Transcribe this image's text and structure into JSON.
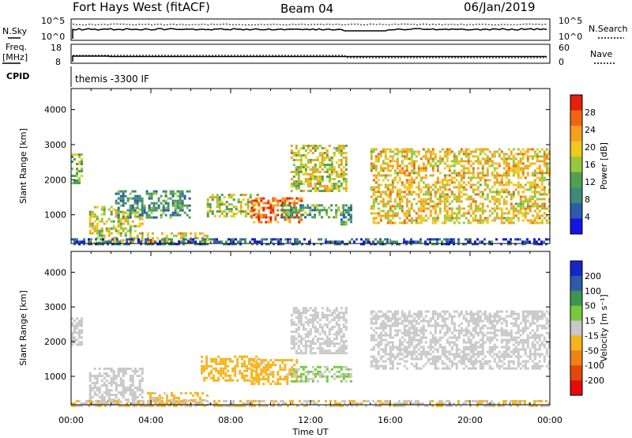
{
  "header": {
    "title": "Fort Hays West (fitACF)",
    "beam": "Beam 04",
    "date": "06/Jan/2019"
  },
  "summary": {
    "nsky_label": "N.Sky",
    "nsearch_label": "N.Search",
    "nsky_ticks": [
      "10^5",
      "10^0"
    ],
    "nsearch_ticks": [
      "10^5",
      "10^0"
    ],
    "freq_label_line1": "Freq.",
    "freq_label_line2": "[MHz]",
    "freq_ticks": [
      "18",
      "8"
    ],
    "nave_label": "Nave",
    "nave_ticks": [
      "60",
      "0"
    ],
    "cpid_label": "CPID",
    "cpid_text": "themis -3300 IF"
  },
  "chart_data": [
    {
      "type": "heatmap",
      "title": "",
      "xlabel": "Time UT",
      "ylabel": "Slant Range [km]",
      "xlim": [
        0,
        24
      ],
      "ylim": [
        180,
        4600
      ],
      "xticks": [
        "00:00",
        "04:00",
        "08:00",
        "12:00",
        "16:00",
        "20:00",
        "00:00"
      ],
      "yticks": [
        1000,
        2000,
        3000,
        4000
      ],
      "colorbar": {
        "label": "Power [dB]",
        "range": [
          0,
          32
        ],
        "ticks": [
          4,
          8,
          12,
          16,
          20,
          24,
          28
        ],
        "colors": [
          "#1414e6",
          "#2e5aaa",
          "#3c8c78",
          "#50a050",
          "#96c83c",
          "#f0c81e",
          "#f5a01e",
          "#f06414",
          "#e61e0a"
        ]
      },
      "scatter_regions": [
        {
          "t0": 0.0,
          "t1": 0.5,
          "r0": 1900,
          "r1": 2750,
          "value": 14
        },
        {
          "t0": 0.9,
          "t1": 3.6,
          "r0": 200,
          "r1": 1250,
          "value": 18
        },
        {
          "t0": 2.2,
          "t1": 6.0,
          "r0": 900,
          "r1": 1700,
          "value": 10
        },
        {
          "t0": 3.8,
          "t1": 6.8,
          "r0": 200,
          "r1": 500,
          "value": 20
        },
        {
          "t0": 6.8,
          "t1": 9.4,
          "r0": 950,
          "r1": 1600,
          "value": 17
        },
        {
          "t0": 9.0,
          "t1": 11.5,
          "r0": 800,
          "r1": 1500,
          "value": 26
        },
        {
          "t0": 10.5,
          "t1": 14.0,
          "r0": 900,
          "r1": 1300,
          "value": 12
        },
        {
          "t0": 11.0,
          "t1": 13.8,
          "r0": 1700,
          "r1": 3000,
          "value": 18
        },
        {
          "t0": 13.5,
          "t1": 14.0,
          "r0": 700,
          "r1": 1300,
          "value": 10
        },
        {
          "t0": 15.0,
          "t1": 24.0,
          "r0": 800,
          "r1": 2900,
          "value": 20
        },
        {
          "t0": 0.0,
          "t1": 24.0,
          "r0": 180,
          "r1": 330,
          "value": 6
        }
      ]
    },
    {
      "type": "heatmap",
      "title": "",
      "xlabel": "Time UT",
      "ylabel": "Slant Range [km]",
      "xlim": [
        0,
        24
      ],
      "ylim": [
        180,
        4600
      ],
      "xticks": [
        "00:00",
        "04:00",
        "08:00",
        "12:00",
        "16:00",
        "20:00",
        "00:00"
      ],
      "yticks": [
        1000,
        2000,
        3000,
        4000
      ],
      "colorbar": {
        "label": "Velocity [m s⁻¹]",
        "range": [
          -250,
          250
        ],
        "ticks": [
          200,
          100,
          50,
          15,
          -15,
          -50,
          -100,
          -200
        ],
        "colors": [
          "#1428c8",
          "#2d5aaa",
          "#3c9650",
          "#78c83c",
          "#c8c8c8",
          "#f5b41e",
          "#f08214",
          "#e6460a",
          "#e60a0a"
        ]
      },
      "scatter_regions": [
        {
          "t0": 0.0,
          "t1": 0.5,
          "r0": 1900,
          "r1": 2700,
          "value": 0
        },
        {
          "t0": 0.9,
          "t1": 3.6,
          "r0": 200,
          "r1": 1250,
          "value": 0
        },
        {
          "t0": 3.8,
          "t1": 6.8,
          "r0": 200,
          "r1": 550,
          "value": -40
        },
        {
          "t0": 6.5,
          "t1": 9.4,
          "r0": 900,
          "r1": 1600,
          "value": -60
        },
        {
          "t0": 9.0,
          "t1": 11.3,
          "r0": 800,
          "r1": 1500,
          "value": -45
        },
        {
          "t0": 11.0,
          "t1": 14.0,
          "r0": 850,
          "r1": 1300,
          "value": 30
        },
        {
          "t0": 11.0,
          "t1": 13.8,
          "r0": 1700,
          "r1": 3000,
          "value": 0
        },
        {
          "t0": 15.0,
          "t1": 24.0,
          "r0": 1200,
          "r1": 2900,
          "value": 0
        },
        {
          "t0": 0.0,
          "t1": 24.0,
          "r0": 180,
          "r1": 320,
          "value": -25
        }
      ]
    }
  ]
}
